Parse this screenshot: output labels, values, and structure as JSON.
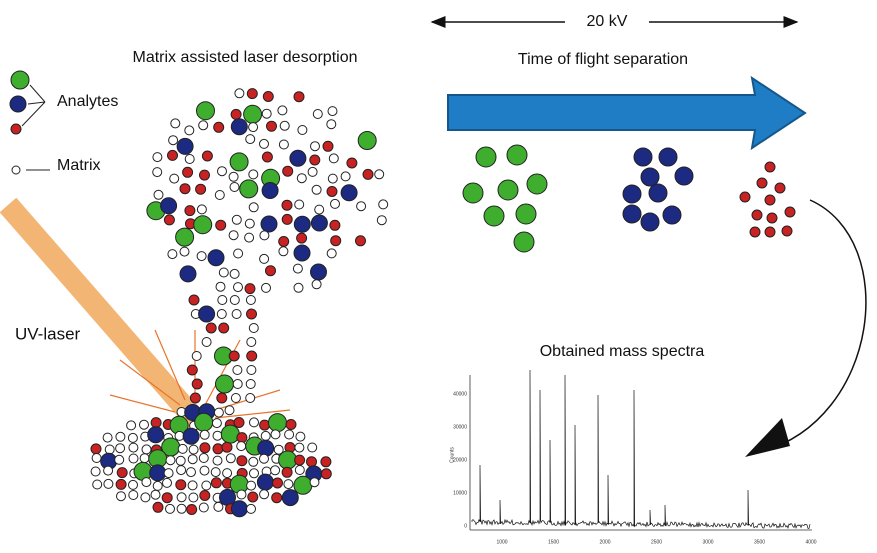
{
  "header": {
    "title": "Matrix assisted laser desorption"
  },
  "legend": {
    "analytes": "Analytes",
    "matrix": "Matrix"
  },
  "laser": {
    "label": "UV-laser"
  },
  "voltage": {
    "label": "20 kV"
  },
  "separation": {
    "title": "Time of flight separation"
  },
  "spectrum": {
    "title": "Obtained mass spectra",
    "y_axis_label": "Counts",
    "x_tick_labels": [
      "1000",
      "1500",
      "2000",
      "2500",
      "3000",
      "3500",
      "4000"
    ],
    "y_tick_labels": [
      "0",
      "10000",
      "20000",
      "30000",
      "40000"
    ]
  }
}
